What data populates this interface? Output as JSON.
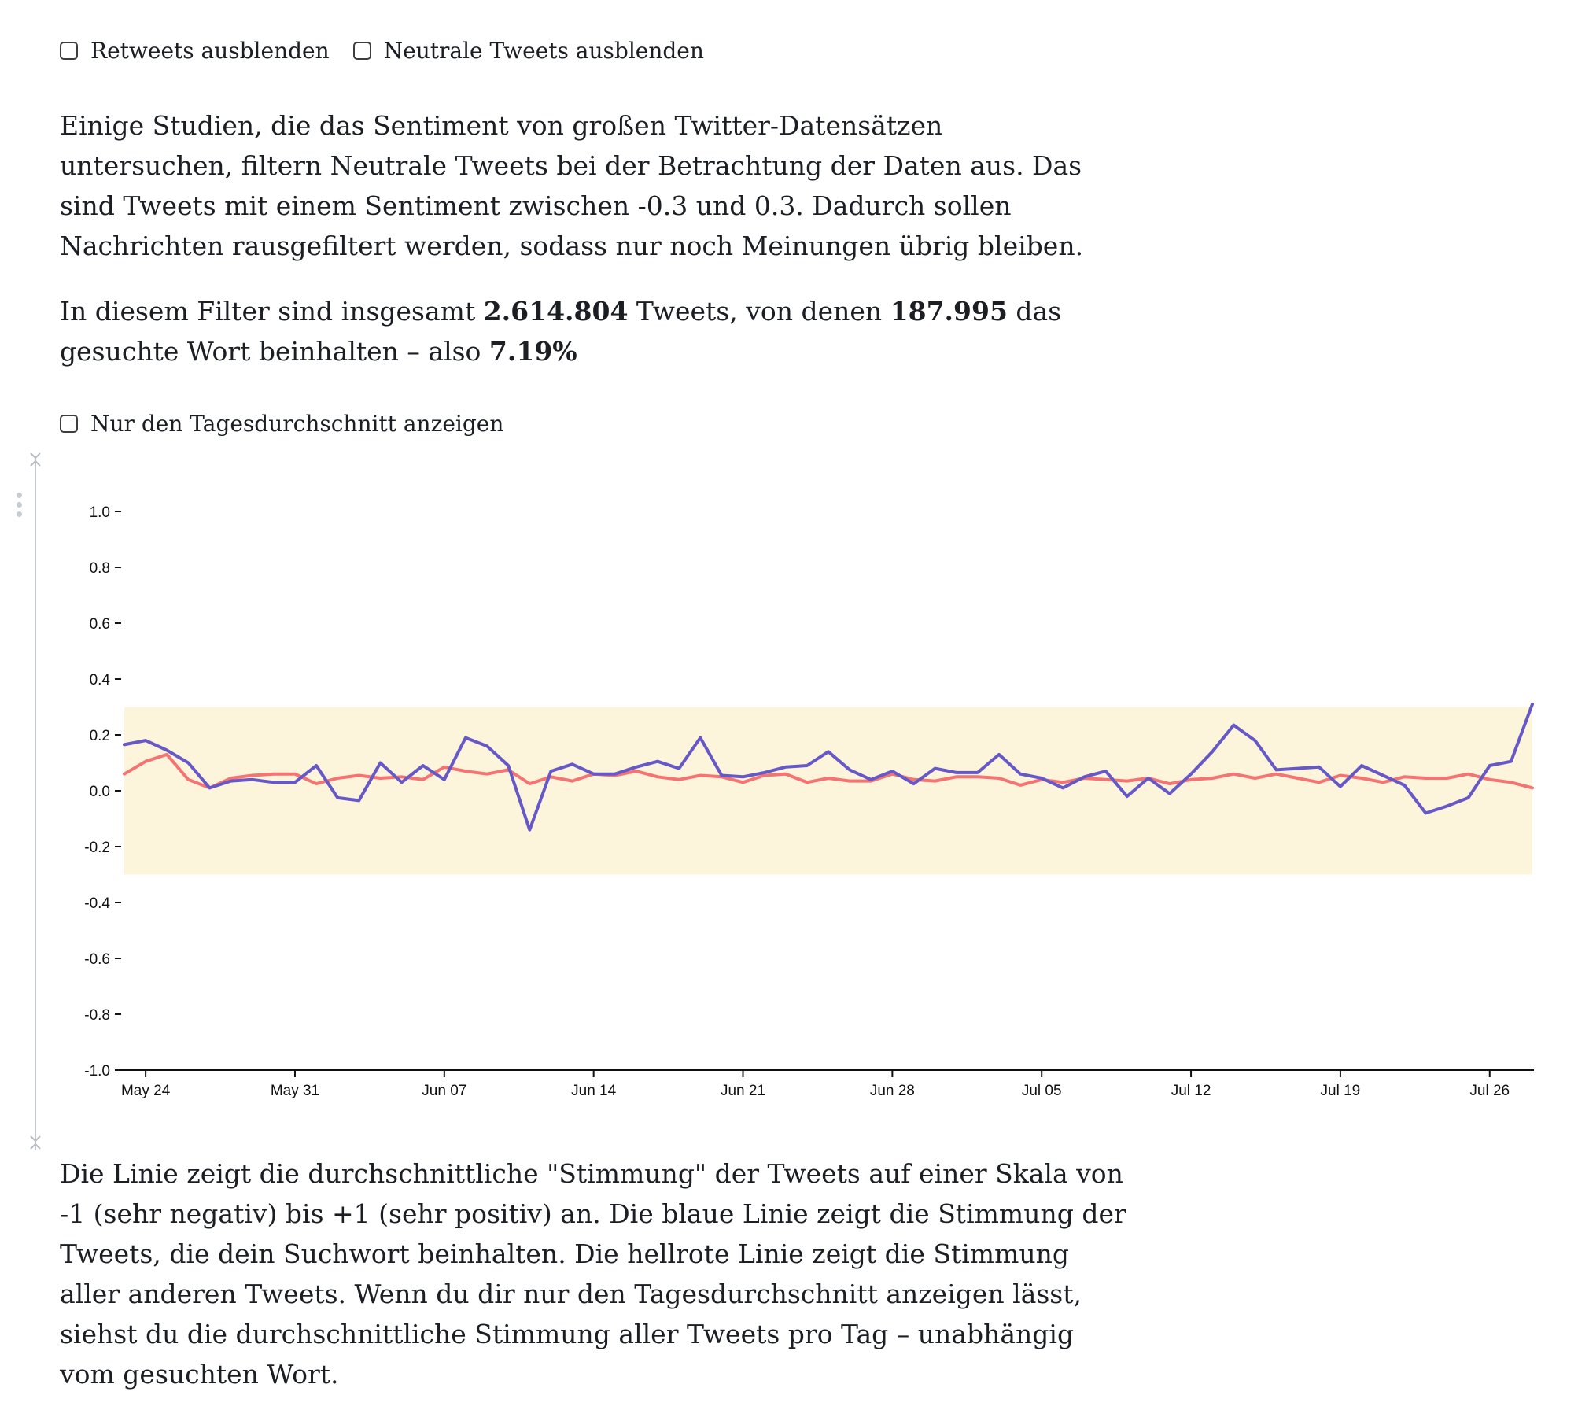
{
  "filters": {
    "retweets_label": "Retweets ausblenden",
    "neutral_label": "Neutrale Tweets ausblenden",
    "retweets_checked": false,
    "neutral_checked": false
  },
  "intro": {
    "text": "Einige Studien, die das Sentiment von großen Twitter-Datensätzen untersuchen, filtern Neutrale Tweets bei der Betrachtung der Daten aus. Das sind Tweets mit einem Sentiment zwischen -0.3 und 0.3. Dadurch sollen Nachrichten rausgefiltert werden, sodass nur noch Meinungen übrig bleiben."
  },
  "stats": {
    "prefix": "In diesem Filter sind insgesamt ",
    "total": "2.614.804",
    "middle": " Tweets, von denen ",
    "matching": "187.995",
    "suffix": " das gesuchte Wort beinhalten – also ",
    "percent": "7.19%"
  },
  "daily_average": {
    "label": "Nur den Tagesdurchschnitt anzeigen",
    "checked": false
  },
  "chart_data": {
    "type": "line",
    "title": "",
    "xlabel": "",
    "ylabel": "",
    "ylim": [
      -1.0,
      1.0
    ],
    "y_ticks": [
      "1.0",
      "0.8",
      "0.6",
      "0.4",
      "0.2",
      "0.0",
      "-0.2",
      "-0.4",
      "-0.6",
      "-0.8",
      "-1.0"
    ],
    "x_ticks": [
      "May 24",
      "May 31",
      "Jun 07",
      "Jun 14",
      "Jun 21",
      "Jun 28",
      "Jul 05",
      "Jul 12",
      "Jul 19",
      "Jul 26"
    ],
    "x_range": [
      "2020-05-23",
      "2020-07-28"
    ],
    "neutral_band": [
      -0.3,
      0.3
    ],
    "neutral_band_color": "#fcf5db",
    "grid": false,
    "legend": "none",
    "series": [
      {
        "color": "#6658c7",
        "x": [
          "2020-05-23",
          "2020-05-24",
          "2020-05-25",
          "2020-05-26",
          "2020-05-27",
          "2020-05-28",
          "2020-05-29",
          "2020-05-30",
          "2020-05-31",
          "2020-06-01",
          "2020-06-02",
          "2020-06-03",
          "2020-06-04",
          "2020-06-05",
          "2020-06-06",
          "2020-06-07",
          "2020-06-08",
          "2020-06-09",
          "2020-06-10",
          "2020-06-11",
          "2020-06-12",
          "2020-06-13",
          "2020-06-14",
          "2020-06-15",
          "2020-06-16",
          "2020-06-17",
          "2020-06-18",
          "2020-06-19",
          "2020-06-20",
          "2020-06-21",
          "2020-06-22",
          "2020-06-23",
          "2020-06-24",
          "2020-06-25",
          "2020-06-26",
          "2020-06-27",
          "2020-06-28",
          "2020-06-29",
          "2020-06-30",
          "2020-07-01",
          "2020-07-02",
          "2020-07-03",
          "2020-07-04",
          "2020-07-05",
          "2020-07-06",
          "2020-07-07",
          "2020-07-08",
          "2020-07-09",
          "2020-07-10",
          "2020-07-11",
          "2020-07-12",
          "2020-07-13",
          "2020-07-14",
          "2020-07-15",
          "2020-07-16",
          "2020-07-17",
          "2020-07-18",
          "2020-07-19",
          "2020-07-20",
          "2020-07-21",
          "2020-07-22",
          "2020-07-23",
          "2020-07-24",
          "2020-07-25",
          "2020-07-26",
          "2020-07-27",
          "2020-07-28"
        ],
        "y": [
          0.165,
          0.18,
          0.145,
          0.1,
          0.01,
          0.035,
          0.04,
          0.03,
          0.03,
          0.09,
          -0.025,
          -0.035,
          0.1,
          0.03,
          0.09,
          0.04,
          0.19,
          0.16,
          0.09,
          -0.14,
          0.07,
          0.095,
          0.06,
          0.06,
          0.085,
          0.105,
          0.08,
          0.19,
          0.055,
          0.05,
          0.065,
          0.085,
          0.09,
          0.14,
          0.075,
          0.04,
          0.07,
          0.025,
          0.08,
          0.065,
          0.065,
          0.13,
          0.06,
          0.045,
          0.01,
          0.05,
          0.07,
          -0.02,
          0.045,
          -0.01,
          0.06,
          0.14,
          0.235,
          0.18,
          0.075,
          0.08,
          0.085,
          0.015,
          0.09,
          0.055,
          0.02,
          -0.08,
          -0.055,
          -0.025,
          0.09,
          0.105,
          0.31
        ]
      },
      {
        "color": "#f57373",
        "x": [
          "2020-05-23",
          "2020-05-24",
          "2020-05-25",
          "2020-05-26",
          "2020-05-27",
          "2020-05-28",
          "2020-05-29",
          "2020-05-30",
          "2020-05-31",
          "2020-06-01",
          "2020-06-02",
          "2020-06-03",
          "2020-06-04",
          "2020-06-05",
          "2020-06-06",
          "2020-06-07",
          "2020-06-08",
          "2020-06-09",
          "2020-06-10",
          "2020-06-11",
          "2020-06-12",
          "2020-06-13",
          "2020-06-14",
          "2020-06-15",
          "2020-06-16",
          "2020-06-17",
          "2020-06-18",
          "2020-06-19",
          "2020-06-20",
          "2020-06-21",
          "2020-06-22",
          "2020-06-23",
          "2020-06-24",
          "2020-06-25",
          "2020-06-26",
          "2020-06-27",
          "2020-06-28",
          "2020-06-29",
          "2020-06-30",
          "2020-07-01",
          "2020-07-02",
          "2020-07-03",
          "2020-07-04",
          "2020-07-05",
          "2020-07-06",
          "2020-07-07",
          "2020-07-08",
          "2020-07-09",
          "2020-07-10",
          "2020-07-11",
          "2020-07-12",
          "2020-07-13",
          "2020-07-14",
          "2020-07-15",
          "2020-07-16",
          "2020-07-17",
          "2020-07-18",
          "2020-07-19",
          "2020-07-20",
          "2020-07-21",
          "2020-07-22",
          "2020-07-23",
          "2020-07-24",
          "2020-07-25",
          "2020-07-26",
          "2020-07-27",
          "2020-07-28"
        ],
        "y": [
          0.06,
          0.105,
          0.13,
          0.04,
          0.01,
          0.045,
          0.055,
          0.06,
          0.06,
          0.025,
          0.045,
          0.055,
          0.045,
          0.05,
          0.04,
          0.085,
          0.07,
          0.06,
          0.075,
          0.025,
          0.05,
          0.035,
          0.06,
          0.055,
          0.07,
          0.05,
          0.04,
          0.055,
          0.05,
          0.03,
          0.055,
          0.06,
          0.03,
          0.045,
          0.035,
          0.035,
          0.06,
          0.04,
          0.035,
          0.05,
          0.05,
          0.045,
          0.02,
          0.04,
          0.03,
          0.045,
          0.04,
          0.035,
          0.045,
          0.025,
          0.04,
          0.045,
          0.06,
          0.045,
          0.06,
          0.045,
          0.03,
          0.055,
          0.045,
          0.03,
          0.05,
          0.045,
          0.045,
          0.06,
          0.04,
          0.03,
          0.01
        ]
      }
    ]
  },
  "explanation": {
    "text": "Die Linie zeigt die durchschnittliche \"Stimmung\" der Tweets auf einer Skala von -1 (sehr negativ) bis +1 (sehr positiv) an. Die blaue Linie zeigt die Stimmung der Tweets, die dein Suchwort beinhalten. Die hellrote Linie zeigt die Stimmung aller anderen Tweets. Wenn du dir nur den Tagesdurchschnitt anzeigen lässt, siehst du die durchschnittliche Stimmung aller Tweets pro Tag – unabhängig vom gesuchten Wort."
  }
}
